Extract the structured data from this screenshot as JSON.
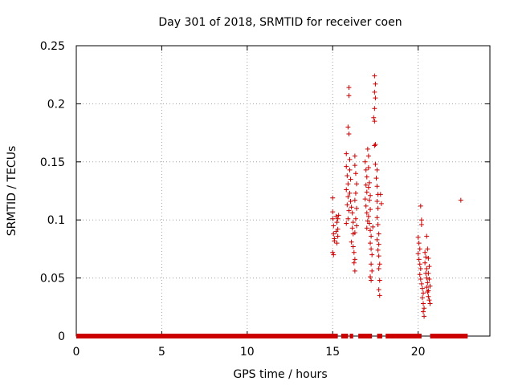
{
  "chart_data": {
    "type": "scatter",
    "title": "Day 301 of 2018, SRMTID for receiver coen",
    "xlabel": "GPS time / hours",
    "ylabel": "SRMTID / TECUs",
    "xlim": [
      0,
      24.2
    ],
    "ylim": [
      0,
      0.25
    ],
    "grid": true,
    "xticks": [
      0,
      5,
      10,
      15,
      20
    ],
    "xtick_labels": [
      "0",
      "5",
      "10",
      "15",
      "20"
    ],
    "yticks": [
      0,
      0.05,
      0.1,
      0.15,
      0.2,
      0.25
    ],
    "ytick_labels": [
      "0",
      "0.05",
      "0.1",
      "0.15",
      "0.2",
      "0.25"
    ],
    "series": [
      {
        "name": "SRMTID",
        "color": "#cc0000",
        "marker": "plus",
        "baseline_ranges": [
          [
            0.0,
            15.3
          ],
          [
            15.5,
            15.9
          ],
          [
            16.0,
            16.2
          ],
          [
            16.5,
            17.3
          ],
          [
            17.6,
            17.9
          ],
          [
            18.1,
            20.2
          ],
          [
            20.7,
            22.9
          ]
        ],
        "baseline_value": 0,
        "points": [
          [
            15.0,
            0.119
          ],
          [
            15.0,
            0.107
          ],
          [
            15.0,
            0.101
          ],
          [
            15.05,
            0.095
          ],
          [
            15.05,
            0.088
          ],
          [
            15.1,
            0.082
          ],
          [
            15.0,
            0.072
          ],
          [
            15.05,
            0.07
          ],
          [
            15.1,
            0.084
          ],
          [
            15.2,
            0.103
          ],
          [
            15.25,
            0.098
          ],
          [
            15.3,
            0.092
          ],
          [
            15.2,
            0.09
          ],
          [
            15.3,
            0.086
          ],
          [
            15.25,
            0.08
          ],
          [
            15.35,
            0.104
          ],
          [
            15.3,
            0.101
          ],
          [
            15.8,
            0.157
          ],
          [
            15.8,
            0.146
          ],
          [
            15.85,
            0.138
          ],
          [
            15.9,
            0.131
          ],
          [
            15.8,
            0.126
          ],
          [
            15.9,
            0.12
          ],
          [
            15.85,
            0.113
          ],
          [
            15.95,
            0.108
          ],
          [
            15.9,
            0.101
          ],
          [
            15.8,
            0.097
          ],
          [
            15.95,
            0.214
          ],
          [
            15.95,
            0.207
          ],
          [
            15.9,
            0.18
          ],
          [
            15.95,
            0.174
          ],
          [
            16.0,
            0.152
          ],
          [
            16.0,
            0.143
          ],
          [
            16.05,
            0.135
          ],
          [
            16.0,
            0.123
          ],
          [
            16.05,
            0.116
          ],
          [
            16.1,
            0.111
          ],
          [
            16.15,
            0.106
          ],
          [
            16.2,
            0.098
          ],
          [
            16.15,
            0.093
          ],
          [
            16.2,
            0.088
          ],
          [
            16.1,
            0.081
          ],
          [
            16.2,
            0.077
          ],
          [
            16.25,
            0.072
          ],
          [
            16.3,
            0.066
          ],
          [
            16.25,
            0.063
          ],
          [
            16.3,
            0.056
          ],
          [
            16.3,
            0.155
          ],
          [
            16.3,
            0.147
          ],
          [
            16.35,
            0.14
          ],
          [
            16.4,
            0.131
          ],
          [
            16.35,
            0.123
          ],
          [
            16.3,
            0.117
          ],
          [
            16.4,
            0.11
          ],
          [
            16.35,
            0.101
          ],
          [
            16.4,
            0.095
          ],
          [
            16.3,
            0.089
          ],
          [
            16.9,
            0.15
          ],
          [
            16.95,
            0.143
          ],
          [
            17.0,
            0.137
          ],
          [
            16.95,
            0.13
          ],
          [
            17.0,
            0.124
          ],
          [
            16.9,
            0.118
          ],
          [
            16.95,
            0.112
          ],
          [
            17.0,
            0.106
          ],
          [
            17.05,
            0.099
          ],
          [
            17.0,
            0.093
          ],
          [
            17.05,
            0.161
          ],
          [
            17.1,
            0.155
          ],
          [
            17.1,
            0.145
          ],
          [
            17.15,
            0.132
          ],
          [
            17.1,
            0.128
          ],
          [
            17.2,
            0.121
          ],
          [
            17.15,
            0.117
          ],
          [
            17.2,
            0.109
          ],
          [
            17.1,
            0.103
          ],
          [
            17.15,
            0.097
          ],
          [
            17.2,
            0.091
          ],
          [
            17.25,
            0.086
          ],
          [
            17.2,
            0.08
          ],
          [
            17.25,
            0.075
          ],
          [
            17.3,
            0.07
          ],
          [
            17.25,
            0.062
          ],
          [
            17.3,
            0.056
          ],
          [
            17.2,
            0.051
          ],
          [
            17.25,
            0.048
          ],
          [
            17.35,
            0.094
          ],
          [
            17.45,
            0.224
          ],
          [
            17.5,
            0.217
          ],
          [
            17.45,
            0.21
          ],
          [
            17.5,
            0.205
          ],
          [
            17.45,
            0.196
          ],
          [
            17.4,
            0.188
          ],
          [
            17.45,
            0.185
          ],
          [
            17.5,
            0.165
          ],
          [
            17.45,
            0.164
          ],
          [
            17.5,
            0.148
          ],
          [
            17.6,
            0.143
          ],
          [
            17.55,
            0.136
          ],
          [
            17.6,
            0.129
          ],
          [
            17.65,
            0.122
          ],
          [
            17.6,
            0.116
          ],
          [
            17.65,
            0.11
          ],
          [
            17.6,
            0.102
          ],
          [
            17.65,
            0.096
          ],
          [
            17.7,
            0.088
          ],
          [
            17.6,
            0.083
          ],
          [
            17.7,
            0.079
          ],
          [
            17.65,
            0.074
          ],
          [
            17.7,
            0.069
          ],
          [
            17.75,
            0.062
          ],
          [
            17.7,
            0.058
          ],
          [
            17.75,
            0.048
          ],
          [
            17.7,
            0.04
          ],
          [
            17.75,
            0.035
          ],
          [
            17.8,
            0.122
          ],
          [
            17.85,
            0.114
          ],
          [
            20.0,
            0.085
          ],
          [
            20.05,
            0.08
          ],
          [
            20.1,
            0.075
          ],
          [
            20.0,
            0.071
          ],
          [
            20.05,
            0.066
          ],
          [
            20.1,
            0.062
          ],
          [
            20.15,
            0.058
          ],
          [
            20.1,
            0.053
          ],
          [
            20.15,
            0.049
          ],
          [
            20.2,
            0.045
          ],
          [
            20.15,
            0.112
          ],
          [
            20.2,
            0.1
          ],
          [
            20.2,
            0.096
          ],
          [
            20.25,
            0.041
          ],
          [
            20.3,
            0.037
          ],
          [
            20.25,
            0.033
          ],
          [
            20.3,
            0.028
          ],
          [
            20.35,
            0.024
          ],
          [
            20.3,
            0.021
          ],
          [
            20.35,
            0.017
          ],
          [
            20.4,
            0.072
          ],
          [
            20.45,
            0.068
          ],
          [
            20.4,
            0.063
          ],
          [
            20.5,
            0.058
          ],
          [
            20.45,
            0.054
          ],
          [
            20.5,
            0.05
          ],
          [
            20.55,
            0.046
          ],
          [
            20.5,
            0.042
          ],
          [
            20.55,
            0.038
          ],
          [
            20.6,
            0.034
          ],
          [
            20.5,
            0.086
          ],
          [
            20.55,
            0.075
          ],
          [
            20.6,
            0.067
          ],
          [
            20.65,
            0.06
          ],
          [
            20.6,
            0.054
          ],
          [
            20.65,
            0.049
          ],
          [
            20.7,
            0.043
          ],
          [
            20.6,
            0.039
          ],
          [
            20.65,
            0.031
          ],
          [
            20.7,
            0.028
          ],
          [
            22.5,
            0.117
          ]
        ]
      }
    ]
  }
}
